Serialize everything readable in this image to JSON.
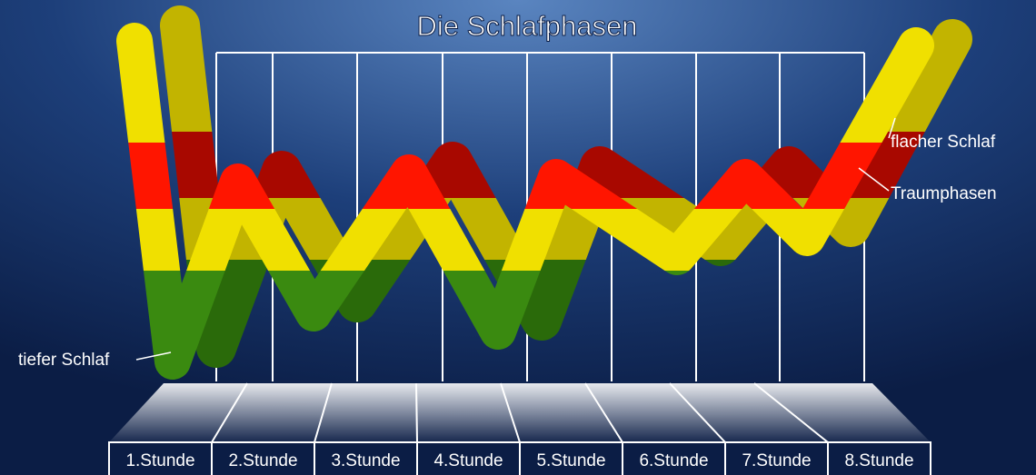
{
  "title": "Die Schlafphasen",
  "hours": [
    "1.Stunde",
    "2.Stunde",
    "3.Stunde",
    "4.Stunde",
    "5.Stunde",
    "6.Stunde",
    "7.Stunde",
    "8.Stunde"
  ],
  "labels": {
    "light_sleep": "flacher Schlaf",
    "dream_phases": "Traumphasen",
    "deep_sleep": "tiefer Schlaf"
  }
}
